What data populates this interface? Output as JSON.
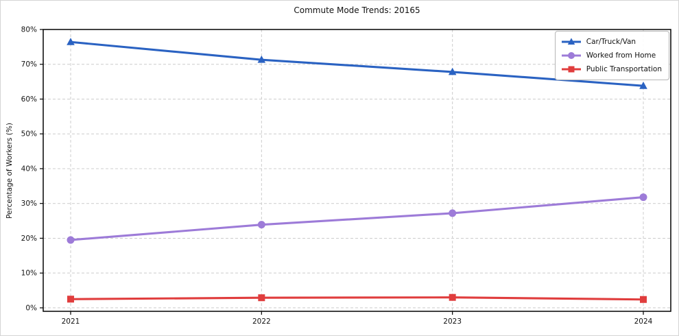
{
  "figure": {
    "title": "Commute Mode Trends: 20165"
  },
  "chart_data": {
    "type": "line",
    "title": "Commute Mode Trends: 20165",
    "xlabel": "",
    "ylabel": "Percentage of Workers (%)",
    "x": [
      "2021",
      "2022",
      "2023",
      "2024"
    ],
    "series": [
      {
        "name": "Car/Truck/Van",
        "color": "#2a62c2",
        "marker": "triangle",
        "values": [
          76.4,
          71.3,
          67.8,
          63.8
        ]
      },
      {
        "name": "Worked from Home",
        "color": "#9d7bd8",
        "marker": "circle",
        "values": [
          19.5,
          23.9,
          27.2,
          31.8
        ]
      },
      {
        "name": "Public Transportation",
        "color": "#e03d3d",
        "marker": "square",
        "values": [
          2.5,
          2.9,
          3.0,
          2.4
        ]
      }
    ],
    "ylim": [
      -1,
      80
    ],
    "ytick_values": [
      0,
      10,
      20,
      30,
      40,
      50,
      60,
      70,
      80
    ],
    "ytick_labels": [
      "0%",
      "10%",
      "20%",
      "30%",
      "40%",
      "50%",
      "60%",
      "70%",
      "80%"
    ],
    "grid": true,
    "legend_position": "upper right",
    "colors": {
      "grid": "#cccccc",
      "axis": "#000000",
      "background": "#ffffff"
    }
  }
}
